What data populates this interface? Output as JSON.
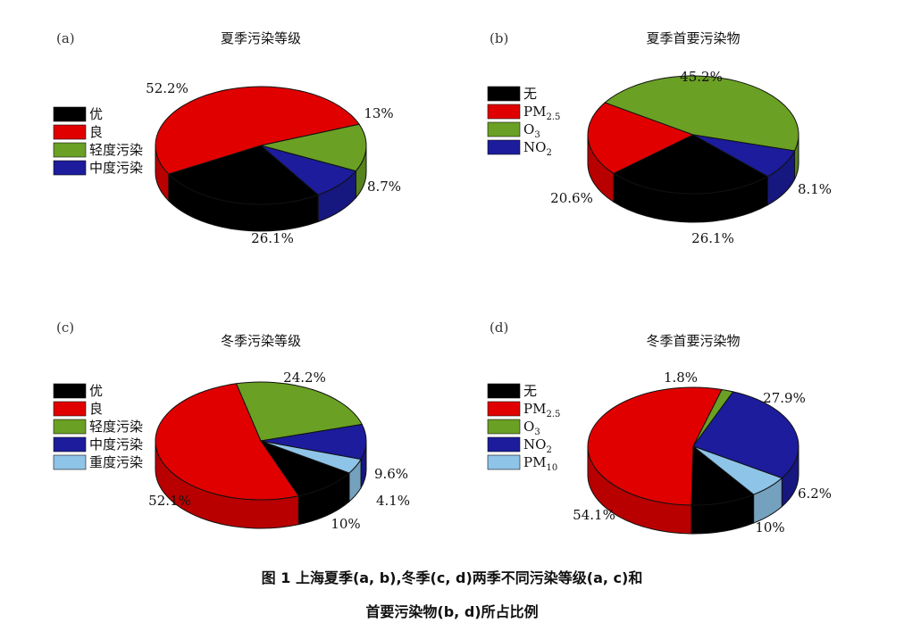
{
  "caption": {
    "line1": "图 1   上海夏季(a, b),冬季(c, d)两季不同污染等级(a, c)和",
    "line2": "首要污染物(b, d)所占比例"
  },
  "chart_data": [
    {
      "type": "pie",
      "panel": "(a)",
      "title": "夏季污染等级",
      "legend": [
        {
          "label": "优",
          "color": "#000000"
        },
        {
          "label": "良",
          "color": "#e00000"
        },
        {
          "label": "轻度污染",
          "color": "#6aa024"
        },
        {
          "label": "中度污染",
          "color": "#1c1c9c"
        }
      ],
      "slices": [
        {
          "name": "优",
          "value": 26.1,
          "label": "26.1%",
          "color": "#000000"
        },
        {
          "name": "良",
          "value": 52.2,
          "label": "52.2%",
          "color": "#e00000"
        },
        {
          "name": "轻度污染",
          "value": 13,
          "label": "13%",
          "color": "#6aa024"
        },
        {
          "name": "中度污染",
          "value": 8.7,
          "label": "8.7%",
          "color": "#1c1c9c"
        }
      ]
    },
    {
      "type": "pie",
      "panel": "(b)",
      "title": "夏季首要污染物",
      "legend": [
        {
          "label": "无",
          "color": "#000000"
        },
        {
          "label": "PM",
          "sub": "2.5",
          "color": "#e00000"
        },
        {
          "label": "O",
          "sub": "3",
          "color": "#6aa024"
        },
        {
          "label": "NO",
          "sub": "2",
          "color": "#1c1c9c"
        }
      ],
      "slices": [
        {
          "name": "无",
          "value": 26.1,
          "label": "26.1%",
          "color": "#000000"
        },
        {
          "name": "PM2.5",
          "value": 20.6,
          "label": "20.6%",
          "color": "#e00000"
        },
        {
          "name": "O3",
          "value": 45.2,
          "label": "45.2%",
          "color": "#6aa024"
        },
        {
          "name": "NO2",
          "value": 8.1,
          "label": "8.1%",
          "color": "#1c1c9c"
        }
      ]
    },
    {
      "type": "pie",
      "panel": "(c)",
      "title": "冬季污染等级",
      "legend": [
        {
          "label": "优",
          "color": "#000000"
        },
        {
          "label": "良",
          "color": "#e00000"
        },
        {
          "label": "轻度污染",
          "color": "#6aa024"
        },
        {
          "label": "中度污染",
          "color": "#1c1c9c"
        },
        {
          "label": "重度污染",
          "color": "#8ec4e8"
        }
      ],
      "slices": [
        {
          "name": "优",
          "value": 10,
          "label": "10%",
          "color": "#000000"
        },
        {
          "name": "良",
          "value": 52.1,
          "label": "52.1%",
          "color": "#e00000"
        },
        {
          "name": "轻度污染",
          "value": 24.2,
          "label": "24.2%",
          "color": "#6aa024"
        },
        {
          "name": "中度污染",
          "value": 9.6,
          "label": "9.6%",
          "color": "#1c1c9c"
        },
        {
          "name": "重度污染",
          "value": 4.1,
          "label": "4.1%",
          "color": "#8ec4e8"
        }
      ]
    },
    {
      "type": "pie",
      "panel": "(d)",
      "title": "冬季首要污染物",
      "legend": [
        {
          "label": "无",
          "color": "#000000"
        },
        {
          "label": "PM",
          "sub": "2.5",
          "color": "#e00000"
        },
        {
          "label": "O",
          "sub": "3",
          "color": "#6aa024"
        },
        {
          "label": "NO",
          "sub": "2",
          "color": "#1c1c9c"
        },
        {
          "label": "PM",
          "sub": "10",
          "color": "#8ec4e8"
        }
      ],
      "slices": [
        {
          "name": "无",
          "value": 10,
          "label": "10%",
          "color": "#000000"
        },
        {
          "name": "PM2.5",
          "value": 54.1,
          "label": "54.1%",
          "color": "#e00000"
        },
        {
          "name": "O3",
          "value": 1.8,
          "label": "1.8%",
          "color": "#6aa024"
        },
        {
          "name": "NO2",
          "value": 27.9,
          "label": "27.9%",
          "color": "#1c1c9c"
        },
        {
          "name": "PM10",
          "value": 6.2,
          "label": "6.2%",
          "color": "#8ec4e8"
        }
      ]
    }
  ]
}
